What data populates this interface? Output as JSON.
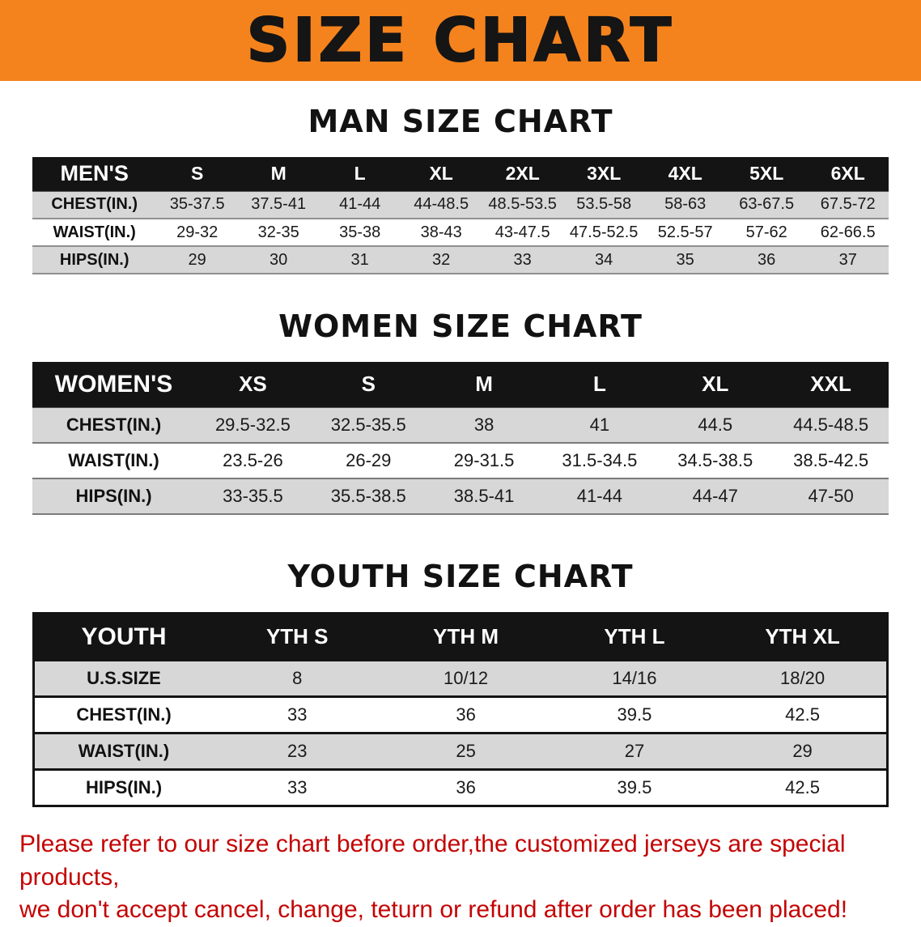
{
  "banner": {
    "title": "SIZE CHART"
  },
  "sections": {
    "men": {
      "heading": "MAN SIZE CHART",
      "table": {
        "header": [
          "MEN'S",
          "S",
          "M",
          "L",
          "XL",
          "2XL",
          "3XL",
          "4XL",
          "5XL",
          "6XL"
        ],
        "rows": [
          {
            "label": "CHEST(IN.)",
            "values": [
              "35-37.5",
              "37.5-41",
              "41-44",
              "44-48.5",
              "48.5-53.5",
              "53.5-58",
              "58-63",
              "63-67.5",
              "67.5-72"
            ]
          },
          {
            "label": "WAIST(IN.)",
            "values": [
              "29-32",
              "32-35",
              "35-38",
              "38-43",
              "43-47.5",
              "47.5-52.5",
              "52.5-57",
              "57-62",
              "62-66.5"
            ]
          },
          {
            "label": "HIPS(IN.)",
            "values": [
              "29",
              "30",
              "31",
              "32",
              "33",
              "34",
              "35",
              "36",
              "37"
            ]
          }
        ]
      }
    },
    "women": {
      "heading": "WOMEN SIZE CHART",
      "table": {
        "header": [
          "WOMEN'S",
          "XS",
          "S",
          "M",
          "L",
          "XL",
          "XXL"
        ],
        "rows": [
          {
            "label": "CHEST(IN.)",
            "values": [
              "29.5-32.5",
              "32.5-35.5",
              "38",
              "41",
              "44.5",
              "44.5-48.5"
            ]
          },
          {
            "label": "WAIST(IN.)",
            "values": [
              "23.5-26",
              "26-29",
              "29-31.5",
              "31.5-34.5",
              "34.5-38.5",
              "38.5-42.5"
            ]
          },
          {
            "label": "HIPS(IN.)",
            "values": [
              "33-35.5",
              "35.5-38.5",
              "38.5-41",
              "41-44",
              "44-47",
              "47-50"
            ]
          }
        ]
      }
    },
    "youth": {
      "heading": "YOUTH SIZE CHART",
      "table": {
        "header": [
          "YOUTH",
          "YTH S",
          "YTH M",
          "YTH L",
          "YTH XL"
        ],
        "rows": [
          {
            "label": "U.S.SIZE",
            "values": [
              "8",
              "10/12",
              "14/16",
              "18/20"
            ]
          },
          {
            "label": "CHEST(IN.)",
            "values": [
              "33",
              "36",
              "39.5",
              "42.5"
            ]
          },
          {
            "label": "WAIST(IN.)",
            "values": [
              "23",
              "25",
              "27",
              "29"
            ]
          },
          {
            "label": "HIPS(IN.)",
            "values": [
              "33",
              "36",
              "39.5",
              "42.5"
            ]
          }
        ]
      }
    }
  },
  "footer": {
    "line1": "Please refer to our size chart before order,the customized jerseys are special products,",
    "line2": "we don't accept cancel, change, teturn or refund after order has been placed!"
  },
  "colors": {
    "banner_orange": "#f5831d",
    "header_black": "#141414",
    "row_gray": "#d7d7d7",
    "note_red": "#c40404"
  }
}
